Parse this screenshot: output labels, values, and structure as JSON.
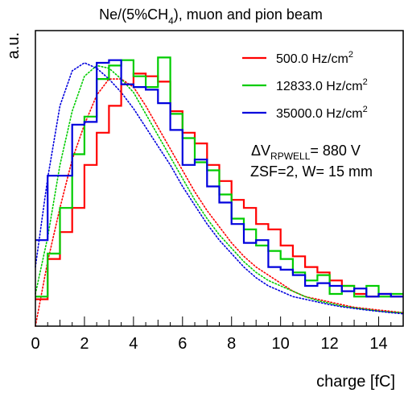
{
  "chart_data": {
    "type": "line",
    "title_main": "Ne/(5%CH",
    "title_sub": "4",
    "title_tail": "), muon and pion beam",
    "xlabel": "charge [fC]",
    "ylabel": "a.u.",
    "xlim": [
      0,
      15
    ],
    "ylim": [
      0,
      1.1
    ],
    "x_ticks": [
      0,
      2,
      4,
      6,
      8,
      10,
      12,
      14
    ],
    "grid": false,
    "legend_position": "top-right",
    "legend_unit_main": " Hz/cm",
    "legend_unit_sup": "2",
    "annotation": {
      "line1_prefix": "ΔV",
      "line1_sub": "RPWELL",
      "line1_suffix": "= 880 V",
      "line2": "ZSF=2, W= 15 mm"
    },
    "bin_width": 0.5,
    "series": [
      {
        "name": "500.0",
        "color": "#ff0000",
        "bin_starts": [
          0,
          0.5,
          1,
          1.5,
          2,
          2.5,
          3,
          3.5,
          4,
          4.5,
          5,
          5.5,
          6,
          6.5,
          7,
          7.5,
          8,
          8.5,
          9,
          9.5,
          10,
          10.5,
          11,
          11.5,
          12,
          12.5,
          13,
          13.5,
          14,
          14.5
        ],
        "values": [
          0.1,
          0.25,
          0.35,
          0.44,
          0.6,
          0.72,
          0.82,
          0.9,
          0.94,
          0.93,
          0.91,
          0.8,
          0.72,
          0.68,
          0.6,
          0.54,
          0.47,
          0.44,
          0.38,
          0.36,
          0.3,
          0.26,
          0.22,
          0.2,
          0.17,
          0.15,
          0.12,
          0.11,
          0.12,
          0.11
        ],
        "fit": [
          0.0,
          0.24,
          0.44,
          0.62,
          0.75,
          0.86,
          0.92,
          0.92,
          0.89,
          0.82,
          0.74,
          0.66,
          0.58,
          0.5,
          0.43,
          0.37,
          0.31,
          0.26,
          0.22,
          0.19,
          0.16,
          0.13,
          0.11,
          0.1,
          0.09,
          0.08,
          0.07,
          0.065,
          0.06,
          0.055,
          0.05
        ]
      },
      {
        "name": "12833.0",
        "color": "#00cc00",
        "bin_starts": [
          0,
          0.5,
          1,
          1.5,
          2,
          2.5,
          3,
          3.5,
          4,
          4.5,
          5,
          5.5,
          6,
          6.5,
          7,
          7.5,
          8,
          8.5,
          9,
          9.5,
          10,
          10.5,
          11,
          11.5,
          12,
          12.5,
          13,
          13.5,
          14,
          14.5
        ],
        "values": [
          0.11,
          0.27,
          0.44,
          0.64,
          0.78,
          0.92,
          0.97,
          0.99,
          0.93,
          0.89,
          1.0,
          0.79,
          0.7,
          0.61,
          0.58,
          0.49,
          0.4,
          0.36,
          0.3,
          0.28,
          0.25,
          0.2,
          0.17,
          0.19,
          0.12,
          0.15,
          0.11,
          0.15,
          0.11,
          0.12
        ],
        "fit": [
          0.12,
          0.33,
          0.6,
          0.8,
          0.93,
          0.97,
          0.96,
          0.92,
          0.87,
          0.79,
          0.71,
          0.63,
          0.55,
          0.47,
          0.4,
          0.34,
          0.29,
          0.24,
          0.2,
          0.17,
          0.15,
          0.13,
          0.11,
          0.095,
          0.085,
          0.075,
          0.068,
          0.062,
          0.056,
          0.052,
          0.05
        ]
      },
      {
        "name": "35000.0",
        "color": "#0000dd",
        "bin_starts": [
          0,
          0.5,
          1,
          1.5,
          2,
          2.5,
          3,
          3.5,
          4,
          4.5,
          5,
          5.5,
          6,
          6.5,
          7,
          7.5,
          8,
          8.5,
          9,
          9.5,
          10,
          10.5,
          11,
          11.5,
          12,
          12.5,
          13,
          13.5,
          14,
          14.5
        ],
        "values": [
          0.32,
          0.56,
          0.56,
          0.75,
          0.76,
          0.98,
          0.99,
          0.9,
          0.89,
          0.88,
          0.83,
          0.73,
          0.6,
          0.62,
          0.52,
          0.46,
          0.38,
          0.31,
          0.32,
          0.22,
          0.21,
          0.19,
          0.15,
          0.16,
          0.15,
          0.13,
          0.14,
          0.11,
          0.12,
          0.11
        ],
        "fit": [
          0.22,
          0.55,
          0.82,
          0.95,
          0.98,
          0.96,
          0.92,
          0.87,
          0.81,
          0.74,
          0.67,
          0.6,
          0.52,
          0.45,
          0.38,
          0.32,
          0.27,
          0.22,
          0.18,
          0.15,
          0.13,
          0.11,
          0.1,
          0.09,
          0.08,
          0.072,
          0.066,
          0.06,
          0.055,
          0.05,
          0.046
        ]
      }
    ]
  }
}
